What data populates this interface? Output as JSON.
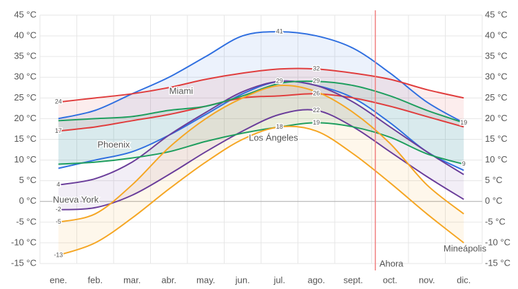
{
  "chart_data": {
    "type": "range-line",
    "categories": [
      "ene.",
      "feb.",
      "mar.",
      "abr.",
      "may.",
      "jun.",
      "jul.",
      "ago.",
      "sept.",
      "oct.",
      "nov.",
      "dic."
    ],
    "ylim": [
      -15,
      45
    ],
    "yticks": [
      {
        "value": -15,
        "label": "-15 °C"
      },
      {
        "value": -10,
        "label": "-10 °C"
      },
      {
        "value": -5,
        "label": "-5 °C"
      },
      {
        "value": 0,
        "label": "0 °C"
      },
      {
        "value": 5,
        "label": "5 °C"
      },
      {
        "value": 10,
        "label": "10 °C"
      },
      {
        "value": 15,
        "label": "15 °C"
      },
      {
        "value": 20,
        "label": "20 °C"
      },
      {
        "value": 25,
        "label": "25 °C"
      },
      {
        "value": 30,
        "label": "30 °C"
      },
      {
        "value": 35,
        "label": "35 °C"
      },
      {
        "value": 40,
        "label": "40 °C"
      },
      {
        "value": 45,
        "label": "45 °C"
      }
    ],
    "grid": true,
    "annotation": {
      "label": "Ahora",
      "x": 9.1,
      "color": "#f08080"
    },
    "series": [
      {
        "name": "Phoenix",
        "color": "#2f6fe0",
        "values": [
          20,
          22,
          26,
          30,
          35,
          40,
          41,
          40,
          37,
          31,
          24,
          19
        ],
        "value_labels": [
          null,
          null,
          null,
          null,
          null,
          null,
          "41",
          null,
          null,
          null,
          null,
          null
        ],
        "low": [
          8,
          10,
          12,
          16,
          21,
          26,
          29,
          28,
          25,
          19,
          12,
          7.5
        ],
        "low_labels": [
          null,
          null,
          null,
          null,
          null,
          null,
          null,
          null,
          null,
          null,
          null,
          null
        ]
      },
      {
        "name": "Miami",
        "color": "#e03c3c",
        "values": [
          24,
          25,
          26,
          27.5,
          29.5,
          31,
          32,
          32,
          31,
          29.5,
          27,
          25
        ],
        "value_labels": [
          "24",
          null,
          null,
          null,
          null,
          null,
          null,
          "32",
          null,
          null,
          null,
          null
        ],
        "low": [
          17,
          18,
          19.5,
          21,
          23,
          25,
          25.5,
          26,
          25,
          23,
          20.5,
          18
        ],
        "low_labels": [
          "17",
          null,
          null,
          null,
          null,
          null,
          null,
          "26",
          null,
          null,
          null,
          null
        ]
      },
      {
        "name": "Nueva York",
        "color": "#6a3d9a",
        "values": [
          4,
          5.5,
          9.5,
          16,
          21.5,
          26.5,
          29,
          28,
          24,
          18,
          12,
          6.5
        ],
        "value_labels": [
          "4",
          null,
          null,
          null,
          null,
          null,
          "29",
          null,
          null,
          null,
          null,
          null
        ],
        "low": [
          -2,
          -1.5,
          1.5,
          6.5,
          12,
          17,
          21,
          22,
          18,
          12,
          6,
          0.5
        ],
        "low_labels": [
          "-2",
          null,
          null,
          null,
          null,
          null,
          null,
          "22",
          null,
          null,
          null,
          null
        ]
      },
      {
        "name": "Los Ángeles",
        "color": "#1e9e5e",
        "values": [
          19.5,
          20,
          20.5,
          22,
          23,
          25.5,
          28.5,
          29,
          28,
          25.5,
          22,
          19
        ],
        "value_labels": [
          null,
          null,
          null,
          null,
          null,
          null,
          null,
          "29",
          null,
          null,
          null,
          "19"
        ],
        "low": [
          9,
          9.5,
          10.5,
          12,
          14.5,
          16.5,
          18,
          19,
          18,
          15.5,
          11.5,
          9
        ],
        "low_labels": [
          null,
          null,
          null,
          null,
          null,
          null,
          null,
          "19",
          null,
          null,
          null,
          "9"
        ]
      },
      {
        "name": "Mineápolis",
        "color": "#f5a623",
        "values": [
          -5,
          -3,
          4,
          13,
          20,
          25,
          28,
          26.5,
          21.5,
          14,
          4,
          -3
        ],
        "value_labels": [
          "-5",
          null,
          null,
          null,
          null,
          null,
          null,
          null,
          null,
          null,
          null,
          null
        ],
        "low": [
          -13,
          -10,
          -4,
          3,
          9.5,
          15,
          18,
          17,
          11.5,
          4.5,
          -3,
          -10
        ],
        "low_labels": [
          "-13",
          null,
          null,
          null,
          null,
          null,
          "18",
          null,
          null,
          null,
          null,
          null
        ]
      }
    ]
  }
}
